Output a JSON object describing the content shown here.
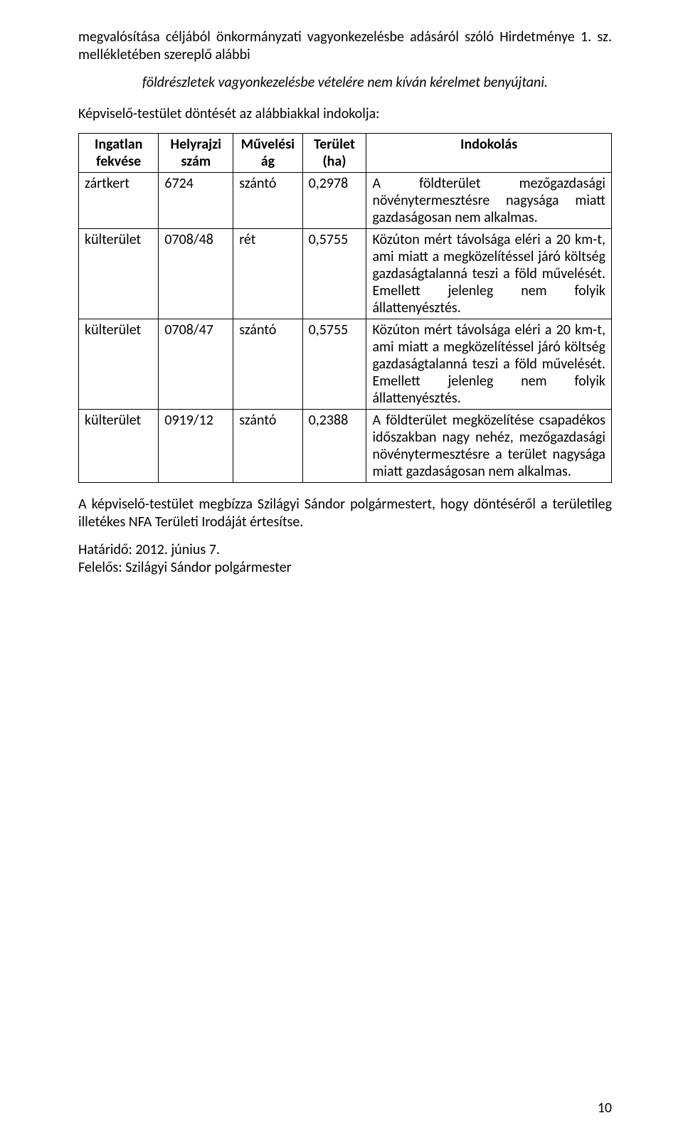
{
  "intro": "megvalósítása céljából önkormányzati vagyonkezelésbe adásáról szóló Hirdetménye 1. sz. mellékletében szereplő alábbi",
  "center_line": "földrészletek vagyonkezelésbe vételére nem kíván kérelmet benyújtani.",
  "lead_in": "Képviselő-testület döntését az alábbiakkal indokolja:",
  "table": {
    "headers": {
      "fekvese_l1": "Ingatlan",
      "fekvese_l2": "fekvése",
      "helyrajzi_l1": "Helyrajzi",
      "helyrajzi_l2": "szám",
      "muvelesi_l1": "Művelési",
      "muvelesi_l2": "ág",
      "terulet_l1": "Terület",
      "terulet_l2": "(ha)",
      "indokolas": "Indokolás"
    },
    "rows": [
      {
        "fekvese": "zártkert",
        "hrsz": "6724",
        "mag": "szántó",
        "terulet": "0,2978",
        "indokolas": "A földterület mezőgazdasági növénytermesztésre nagysága miatt gazdaságosan nem alkalmas."
      },
      {
        "fekvese": "külterület",
        "hrsz": "0708/48",
        "mag": "rét",
        "terulet": "0,5755",
        "indokolas": "Közúton mért távolsága eléri a 20 km-t, ami miatt a megközelítéssel járó költség gazdaságtalanná teszi a föld művelését. Emellett jelenleg nem folyik állattenyésztés."
      },
      {
        "fekvese": "külterület",
        "hrsz": "0708/47",
        "mag": "szántó",
        "terulet": "0,5755",
        "indokolas": "Közúton mért távolsága eléri a 20 km-t, ami miatt a megközelítéssel járó költség gazdaságtalanná teszi a föld művelését. Emellett jelenleg nem folyik állattenyésztés."
      },
      {
        "fekvese": "külterület",
        "hrsz": "0919/12",
        "mag": "szántó",
        "terulet": "0,2388",
        "indokolas": "A földterület megközelítése csapadékos időszakban nagy nehéz, mezőgazdasági növénytermesztésre a terület nagysága miatt gazdaságosan nem alkalmas."
      }
    ]
  },
  "closing": "A képviselő-testület megbízza Szilágyi Sándor polgármestert, hogy döntéséről a területileg illetékes NFA Területi Irodáját értesítse.",
  "deadline": "Határidő: 2012. június 7.",
  "responsible": "Felelős: Szilágyi Sándor polgármester",
  "page_number": "10"
}
